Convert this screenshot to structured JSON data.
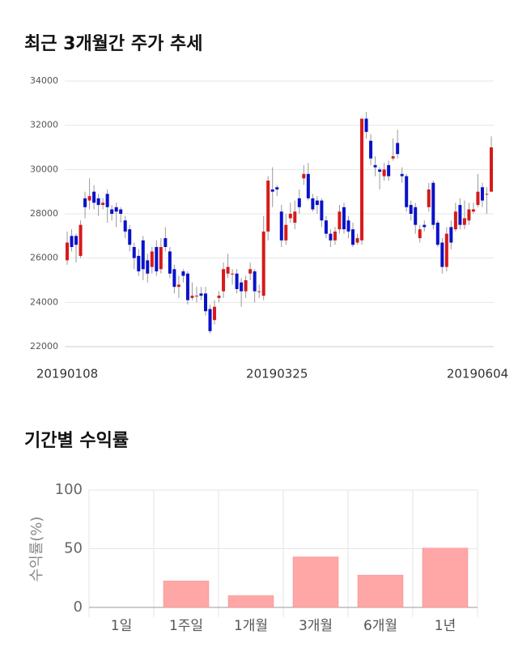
{
  "chart_data": [
    {
      "type": "candlestick",
      "title": "최근 3개월간 주가 추세",
      "categories": [
        "20190108",
        null,
        null,
        null,
        null,
        null,
        null,
        null,
        null,
        null,
        null,
        null,
        null,
        null,
        null,
        null,
        null,
        null,
        null,
        null,
        null,
        null,
        null,
        null,
        null,
        null,
        null,
        null,
        null,
        null,
        null,
        null,
        null,
        null,
        null,
        null,
        null,
        null,
        null,
        null,
        null,
        null,
        null,
        null,
        null,
        null,
        null,
        "20190325",
        null,
        null,
        null,
        null,
        null,
        null,
        null,
        null,
        null,
        null,
        null,
        null,
        null,
        null,
        null,
        null,
        null,
        null,
        null,
        null,
        null,
        null,
        null,
        null,
        null,
        null,
        null,
        null,
        null,
        null,
        null,
        null,
        null,
        null,
        null,
        null,
        null,
        null,
        null,
        null,
        null,
        null,
        null,
        null,
        null,
        null,
        null,
        "20190604"
      ],
      "open": [
        25900,
        27000,
        27000,
        26100,
        28700,
        28600,
        29000,
        28700,
        28400,
        28900,
        28200,
        28300,
        28200,
        27700,
        27300,
        26500,
        26100,
        26800,
        25900,
        25600,
        26500,
        25500,
        26900,
        26300,
        25500,
        24700,
        25400,
        25300,
        24200,
        24300,
        24400,
        24400,
        23700,
        23200,
        24200,
        24500,
        25300,
        25300,
        25300,
        24900,
        24500,
        25300,
        25400,
        24500,
        24300,
        27200,
        29100,
        29200,
        28100,
        26800,
        27800,
        27600,
        28700,
        29600,
        29800,
        28700,
        28600,
        28600,
        27700,
        27100,
        26800,
        27300,
        28300,
        27700,
        27300,
        26700,
        26800,
        32300,
        31300,
        30200,
        30000,
        29700,
        30200,
        30500,
        31200,
        29800,
        29700,
        28400,
        28300,
        26900,
        27500,
        28300,
        29400,
        27600,
        26700,
        25600,
        27400,
        27300,
        28400,
        27500,
        27700,
        28100,
        28400,
        29200,
        28900,
        29000
      ],
      "high": [
        27200,
        27300,
        27100,
        27700,
        29000,
        29600,
        29300,
        28900,
        28700,
        29100,
        28400,
        28500,
        28300,
        27900,
        27500,
        26700,
        26400,
        27000,
        26200,
        26500,
        26800,
        26900,
        27400,
        26500,
        25700,
        25200,
        25500,
        25400,
        24900,
        24700,
        24700,
        24700,
        23900,
        24100,
        24500,
        25800,
        26200,
        25500,
        25500,
        25100,
        25200,
        25800,
        25500,
        24800,
        27900,
        29700,
        30100,
        29300,
        28400,
        28000,
        28500,
        28600,
        29100,
        30200,
        30300,
        28900,
        28800,
        28700,
        27900,
        27300,
        27400,
        28400,
        28500,
        27900,
        27600,
        27100,
        32300,
        32600,
        31600,
        30600,
        30100,
        30300,
        30400,
        31400,
        31800,
        30100,
        29800,
        28600,
        28500,
        27500,
        27700,
        29400,
        29500,
        27700,
        26900,
        27400,
        27700,
        28500,
        28700,
        28600,
        28500,
        28500,
        29800,
        29400,
        29200,
        31500
      ],
      "low": [
        25700,
        26300,
        25800,
        26000,
        27800,
        28200,
        28200,
        27900,
        28200,
        27600,
        27700,
        27400,
        27600,
        26900,
        26300,
        25500,
        25200,
        25000,
        24900,
        25300,
        25200,
        25300,
        26300,
        25100,
        24400,
        24200,
        24900,
        23900,
        24100,
        24000,
        24100,
        23400,
        22600,
        23000,
        24000,
        24200,
        25100,
        24800,
        24400,
        23800,
        24200,
        25000,
        24000,
        24200,
        24100,
        26800,
        28300,
        28800,
        26500,
        26600,
        27600,
        27300,
        28000,
        29300,
        28600,
        28100,
        28000,
        27400,
        26900,
        26500,
        26600,
        27100,
        27100,
        26900,
        26500,
        26600,
        26600,
        31400,
        30200,
        29700,
        29100,
        29500,
        29500,
        30400,
        30500,
        29400,
        28100,
        27700,
        27100,
        26700,
        27200,
        28100,
        27300,
        26500,
        25300,
        25400,
        26400,
        27200,
        27300,
        27300,
        27500,
        28000,
        28300,
        28300,
        28000,
        29000
      ],
      "close": [
        26700,
        26500,
        26600,
        27500,
        28300,
        28800,
        28500,
        28400,
        28500,
        28300,
        28000,
        28100,
        28000,
        27200,
        26600,
        26000,
        25400,
        25500,
        25300,
        26300,
        25400,
        26500,
        26500,
        25300,
        24700,
        24800,
        25200,
        24100,
        24300,
        24300,
        24300,
        23600,
        22700,
        23800,
        24300,
        25500,
        25600,
        25300,
        24600,
        24500,
        25000,
        25500,
        24500,
        24500,
        27200,
        29500,
        29000,
        29100,
        26800,
        27500,
        28000,
        28100,
        28300,
        29800,
        28700,
        28200,
        28400,
        27700,
        27100,
        26800,
        27200,
        28100,
        27300,
        27200,
        26600,
        26900,
        32300,
        31700,
        30500,
        30100,
        29900,
        30000,
        29700,
        30600,
        30700,
        29700,
        28300,
        28000,
        27500,
        27300,
        27400,
        29100,
        27500,
        26600,
        25600,
        27100,
        26700,
        28100,
        27500,
        27800,
        28200,
        28200,
        29000,
        28600,
        28900,
        31000
      ],
      "up_color": "#d61a1a",
      "down_color": "#0a12c8",
      "ylim": [
        22000,
        34000
      ],
      "yticks": [
        22000,
        24000,
        26000,
        28000,
        30000,
        32000,
        34000
      ],
      "grid": true
    },
    {
      "type": "bar",
      "title": "기간별 수익률",
      "ylabel": "수익률(%)",
      "categories": [
        "1일",
        "1주일",
        "1개월",
        "3개월",
        "6개월",
        "1년"
      ],
      "values": [
        0,
        22.5,
        10,
        43,
        27.5,
        50.5
      ],
      "color": "#ffa6a6",
      "ylim": [
        0,
        100
      ],
      "yticks": [
        0,
        50,
        100
      ],
      "grid": true
    }
  ]
}
